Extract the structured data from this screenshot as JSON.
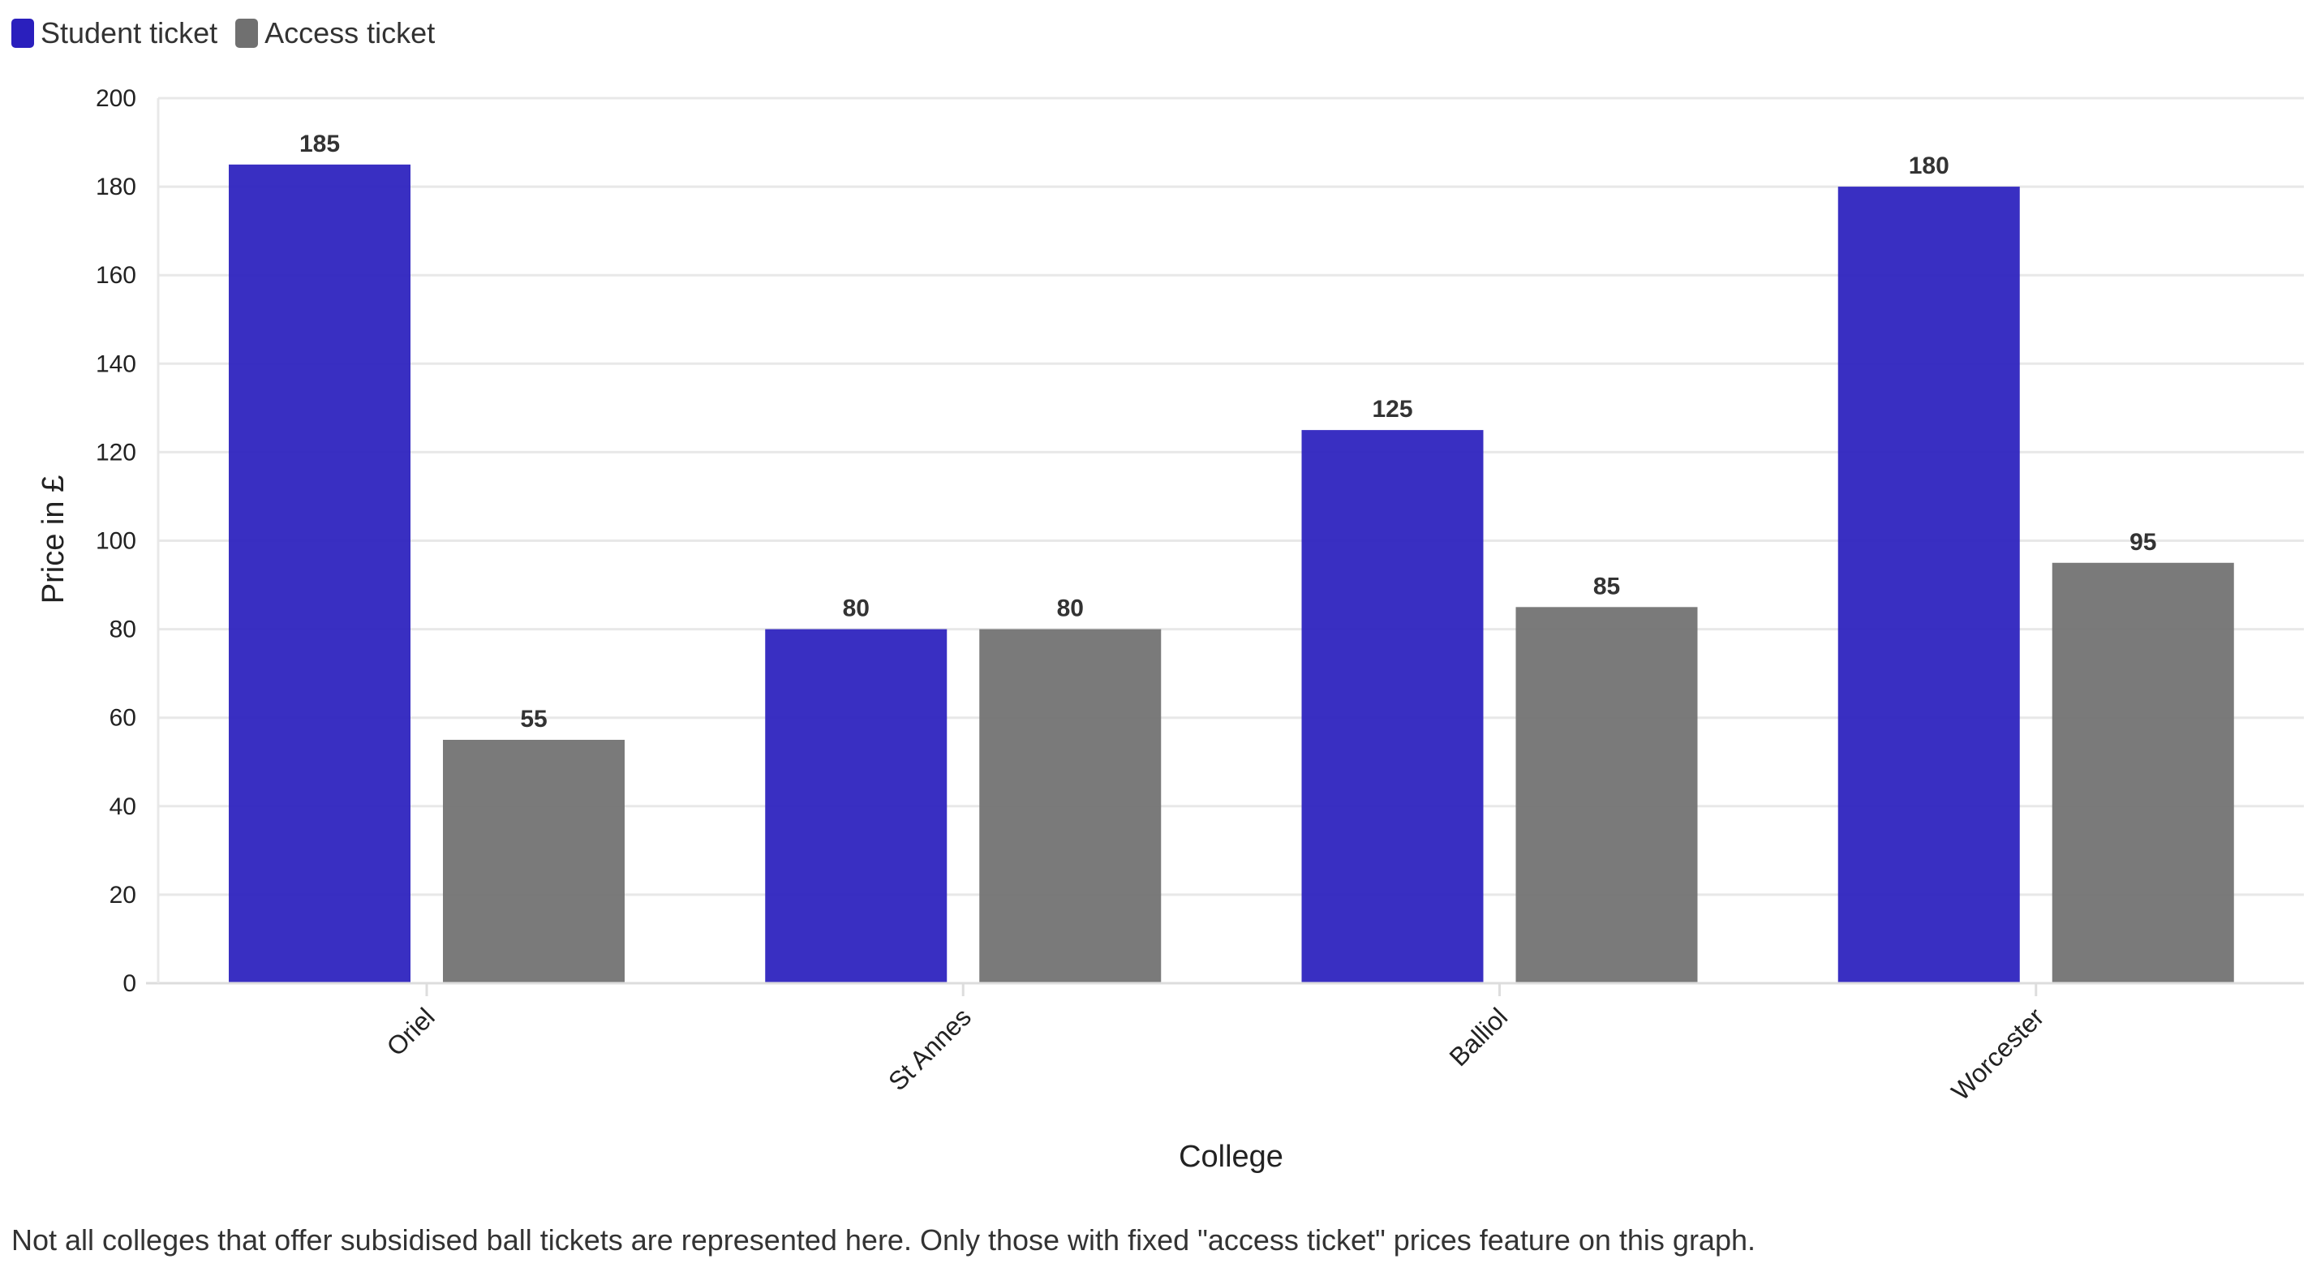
{
  "chart_data": {
    "type": "bar",
    "categories": [
      "Oriel",
      "St Annes",
      "Balliol",
      "Worcester"
    ],
    "series": [
      {
        "name": "Student ticket",
        "values": [
          185,
          80,
          125,
          180
        ],
        "color": "#2a1fbd"
      },
      {
        "name": "Access ticket",
        "values": [
          55,
          80,
          85,
          95
        ],
        "color": "#707070"
      }
    ],
    "xlabel": "College",
    "ylabel": "Price in £",
    "ylim": [
      0,
      200
    ],
    "yticks": [
      0,
      20,
      40,
      60,
      80,
      100,
      120,
      140,
      160,
      180,
      200
    ],
    "grid": true,
    "legend": "top-left",
    "data_labels": true
  },
  "footnote": "Not all colleges that offer subsidised ball tickets are represented here. Only those with fixed \"access ticket\" prices feature on this graph."
}
